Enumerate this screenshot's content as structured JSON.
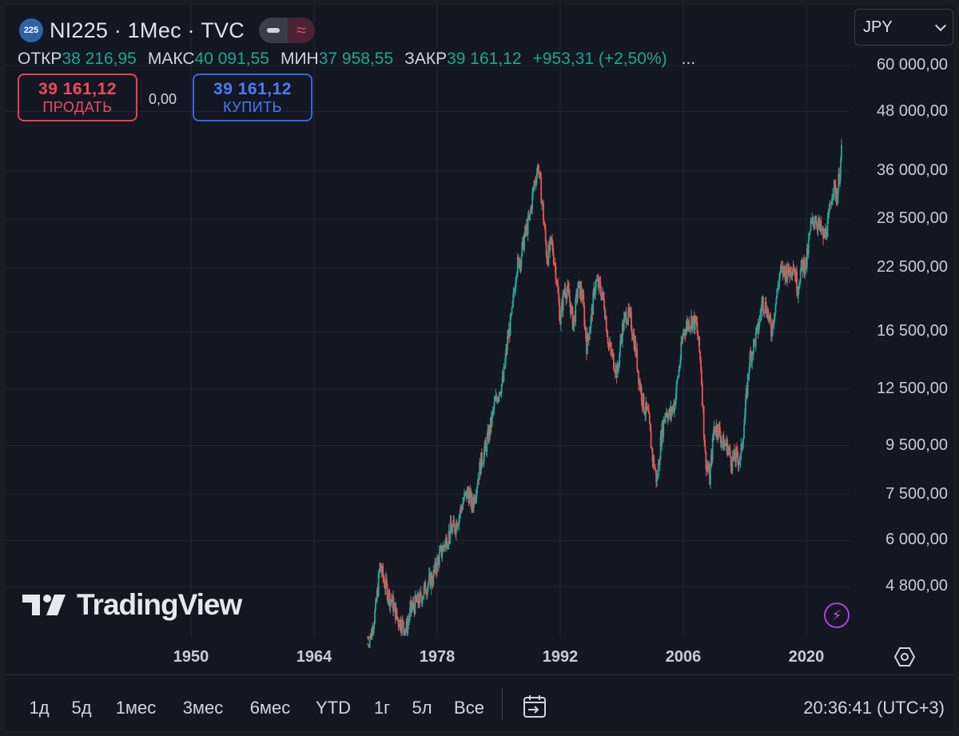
{
  "header": {
    "logo_text": "225",
    "title": "NI225 · 1Мес · TVC",
    "pill_b_glyph": "≈",
    "currency": "JPY",
    "ohlc": {
      "open_label": "ОТКР",
      "open": "38 216,95",
      "high_label": "МАКС",
      "high": "40 091,55",
      "low_label": "МИН",
      "low": "37 958,55",
      "close_label": "ЗАКР",
      "close": "39 161,12",
      "change": "+953,31 (+2,50%)",
      "more": "..."
    },
    "sell": {
      "price": "39 161,12",
      "label": "ПРОДАТЬ"
    },
    "buy": {
      "price": "39 161,12",
      "label": "КУПИТЬ"
    },
    "spread": "0,00"
  },
  "chart_data": {
    "type": "candlestick",
    "title": "NI225 · 1Мес · TVC",
    "y_scale": "log",
    "ylim": [
      3700,
      62000
    ],
    "xlim": [
      1940,
      2028
    ],
    "grid": true,
    "y_ticks": [
      "60 000,00",
      "48 000,00",
      "36 000,00",
      "28 500,00",
      "22 500,00",
      "16 500,00",
      "12 500,00",
      "9 500,00",
      "7 500,00",
      "6 000,00",
      "4 800,00"
    ],
    "y_tick_values": [
      60000,
      48000,
      36000,
      28500,
      22500,
      16500,
      12500,
      9500,
      7500,
      6000,
      4800
    ],
    "x_ticks": [
      "1950",
      "1964",
      "1978",
      "1992",
      "2006",
      "2020"
    ],
    "x_tick_values": [
      1950,
      1964,
      1978,
      1992,
      2006,
      2020
    ],
    "series": [
      {
        "x": [
          1970.5,
          1971,
          1971.5,
          1972,
          1972.5,
          1973,
          1973.5,
          1974,
          1974.5,
          1975,
          1975.5,
          1976,
          1976.5,
          1977,
          1977.5,
          1978,
          1978.5,
          1979,
          1979.5,
          1980,
          1980.5,
          1981,
          1981.5,
          1982,
          1982.5,
          1983,
          1983.5,
          1984,
          1984.5,
          1985,
          1985.5,
          1986,
          1986.5,
          1987,
          1987.5,
          1988,
          1988.5,
          1989,
          1989.5,
          1990,
          1990.5,
          1991,
          1991.5,
          1992,
          1992.5,
          1993,
          1993.5,
          1994,
          1994.5,
          1995,
          1995.5,
          1996,
          1996.5,
          1997,
          1997.5,
          1998,
          1998.5,
          1999,
          1999.5,
          2000,
          2000.5,
          2001,
          2001.5,
          2002,
          2002.5,
          2003,
          2003.5,
          2004,
          2004.5,
          2005,
          2005.5,
          2006,
          2006.5,
          2007,
          2007.5,
          2008,
          2008.5,
          2009,
          2009.5,
          2010,
          2010.5,
          2011,
          2011.5,
          2012,
          2012.5,
          2013,
          2013.5,
          2014,
          2014.5,
          2015,
          2015.5,
          2016,
          2016.5,
          2017,
          2017.5,
          2018,
          2018.5,
          2019,
          2019.5,
          2020,
          2020.5,
          2021,
          2021.5,
          2022,
          2022.5,
          2023,
          2023.5,
          2024
        ],
        "y": [
          3800,
          4300,
          5300,
          4900,
          4600,
          4400,
          4100,
          4000,
          3900,
          4300,
          4400,
          4500,
          4700,
          4900,
          5000,
          5400,
          5700,
          6000,
          6300,
          6400,
          6800,
          7300,
          7600,
          7100,
          7900,
          8800,
          9400,
          10300,
          11500,
          12400,
          13000,
          15800,
          17900,
          22500,
          23700,
          26500,
          28500,
          33500,
          37000,
          30000,
          23500,
          25500,
          22200,
          17500,
          20500,
          19600,
          17000,
          20500,
          19800,
          15500,
          17500,
          21000,
          20500,
          19000,
          15500,
          14500,
          13500,
          16500,
          18000,
          17500,
          15500,
          13000,
          11500,
          11000,
          9000,
          8000,
          10000,
          11300,
          11000,
          11700,
          13700,
          16500,
          17200,
          17500,
          17000,
          14000,
          9000,
          8100,
          10400,
          10300,
          9600,
          9500,
          8800,
          9000,
          8900,
          11000,
          14300,
          15500,
          16700,
          19200,
          18500,
          16500,
          19000,
          22000,
          22200,
          22000,
          23000,
          20500,
          22800,
          23000,
          27500,
          28800,
          27300,
          26000,
          28000,
          33500,
          32000,
          39161
        ]
      }
    ]
  },
  "watermark": "TradingView",
  "bottom_bar": {
    "ranges": [
      "1д",
      "5д",
      "1мес",
      "3мес",
      "6мес",
      "YTD",
      "1г",
      "5л",
      "Все"
    ],
    "time": "20:36:41 (UTC+3)"
  }
}
